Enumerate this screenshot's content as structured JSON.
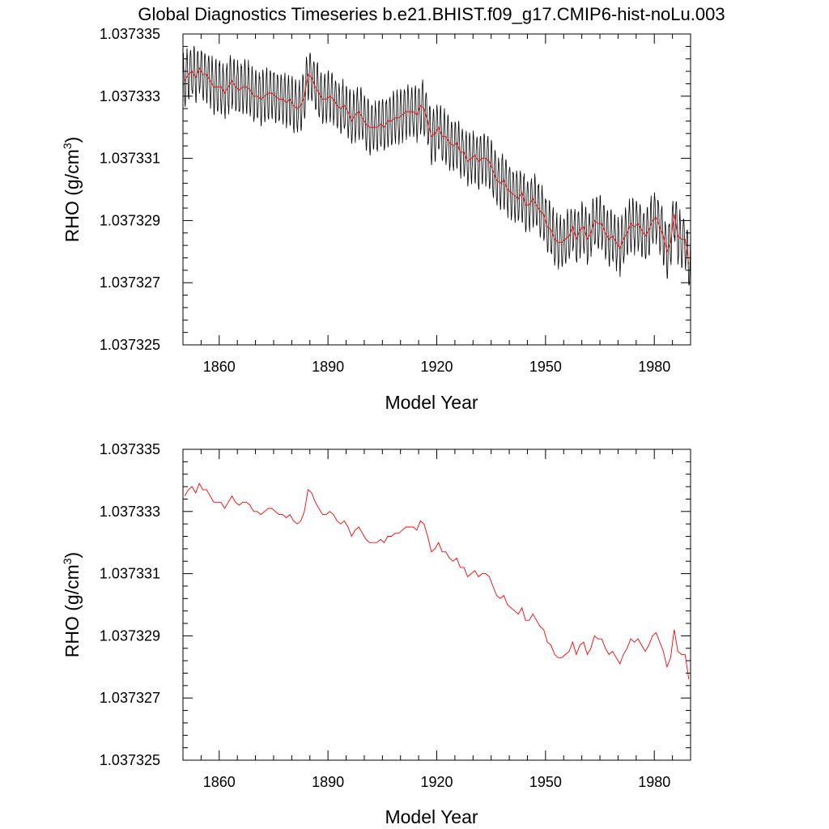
{
  "title": "Global Diagnostics Timeseries b.e21.BHIST.f09_g17.CMIP6-hist-noLu.003",
  "colors": {
    "monthly": "#000000",
    "annual": "#ff0000",
    "frame": "#000000",
    "background": "#ffffff"
  },
  "chart_data": [
    {
      "type": "line",
      "panel": "top",
      "xlabel": "Model Year",
      "ylabel": "RHO (g/cm",
      "ylabel_sup": "3",
      "ylabel_close": ")",
      "xlim": [
        1850,
        1990
      ],
      "ylim": [
        1.037325,
        1.037335
      ],
      "xticks": [
        1860,
        1890,
        1920,
        1950,
        1980
      ],
      "xtick_labels": [
        "1860",
        "1890",
        "1920",
        "1950",
        "1980"
      ],
      "yticks": [
        1.037325,
        1.037327,
        1.037329,
        1.037331,
        1.037333,
        1.037335
      ],
      "ytick_labels": [
        "1.037325",
        "1.037327",
        "1.037329",
        "1.037331",
        "1.037333",
        "1.037335"
      ],
      "grid": false,
      "legend": "none",
      "series": [
        {
          "role": "monthly",
          "color": "#000000",
          "seasonal_amplitude": 8e-07,
          "mean_source": "annual"
        },
        {
          "role": "annual",
          "color": "#ff0000",
          "x": [],
          "y": []
        }
      ]
    },
    {
      "type": "line",
      "panel": "bottom",
      "xlabel": "Model Year",
      "ylabel": "RHO (g/cm",
      "ylabel_sup": "3",
      "ylabel_close": ")",
      "xlim": [
        1850,
        1990
      ],
      "ylim": [
        1.037325,
        1.037335
      ],
      "xticks": [
        1860,
        1890,
        1920,
        1950,
        1980
      ],
      "xtick_labels": [
        "1860",
        "1890",
        "1920",
        "1950",
        "1980"
      ],
      "yticks": [
        1.037325,
        1.037327,
        1.037329,
        1.037331,
        1.037333,
        1.037335
      ],
      "ytick_labels": [
        "1.037325",
        "1.037327",
        "1.037329",
        "1.037331",
        "1.037333",
        "1.037335"
      ],
      "grid": false,
      "legend": "none",
      "series": [
        {
          "role": "annual",
          "color": "#ff0000",
          "x": [],
          "y": []
        }
      ]
    }
  ],
  "annual_anchors": {
    "x": [
      1850,
      1851,
      1852,
      1853,
      1854,
      1855,
      1856,
      1857,
      1858,
      1859,
      1860,
      1861,
      1862,
      1863,
      1864,
      1865,
      1866,
      1867,
      1868,
      1869,
      1870,
      1871,
      1872,
      1873,
      1874,
      1875,
      1876,
      1877,
      1878,
      1879,
      1880,
      1881,
      1882,
      1883,
      1884,
      1885,
      1886,
      1887,
      1888,
      1889,
      1890,
      1891,
      1892,
      1893,
      1894,
      1895,
      1896,
      1897,
      1898,
      1899,
      1900,
      1901,
      1902,
      1903,
      1904,
      1905,
      1906,
      1907,
      1908,
      1909,
      1910,
      1911,
      1912,
      1913,
      1914,
      1915,
      1916,
      1917,
      1918,
      1919,
      1920,
      1921,
      1922,
      1923,
      1924,
      1925,
      1926,
      1927,
      1928,
      1929,
      1930,
      1931,
      1932,
      1933,
      1934,
      1935,
      1936,
      1937,
      1938,
      1939,
      1940,
      1941,
      1942,
      1943,
      1944,
      1945,
      1946,
      1947,
      1948,
      1949,
      1950,
      1951,
      1952,
      1953,
      1954,
      1955,
      1956,
      1957,
      1958,
      1959,
      1960,
      1961,
      1962,
      1963,
      1964,
      1965,
      1966,
      1967,
      1968,
      1969,
      1970,
      1971,
      1972,
      1973,
      1974,
      1975,
      1976,
      1977,
      1978,
      1979,
      1980,
      1981,
      1982,
      1983,
      1984,
      1985,
      1986,
      1987,
      1988,
      1989
    ],
    "y": [
      1.0373335,
      1.0373337,
      1.0373338,
      1.0373336,
      1.0373339,
      1.0373337,
      1.0373337,
      1.0373335,
      1.0373333,
      1.0373333,
      1.0373333,
      1.0373331,
      1.0373333,
      1.0373335,
      1.0373333,
      1.0373332,
      1.0373333,
      1.0373333,
      1.0373332,
      1.037333,
      1.037333,
      1.0373329,
      1.037333,
      1.0373331,
      1.0373331,
      1.037333,
      1.0373329,
      1.0373329,
      1.0373328,
      1.0373329,
      1.0373327,
      1.0373326,
      1.0373327,
      1.037333,
      1.0373337,
      1.0373336,
      1.0373333,
      1.0373331,
      1.0373329,
      1.0373329,
      1.037333,
      1.0373329,
      1.0373327,
      1.0373326,
      1.0373327,
      1.0373325,
      1.0373322,
      1.0373324,
      1.0373325,
      1.0373323,
      1.0373321,
      1.037332,
      1.037332,
      1.037332,
      1.0373321,
      1.037332,
      1.0373322,
      1.0373322,
      1.0373323,
      1.0373323,
      1.0373324,
      1.0373325,
      1.0373325,
      1.0373325,
      1.0373324,
      1.0373327,
      1.0373326,
      1.0373322,
      1.0373317,
      1.0373318,
      1.037332,
      1.0373317,
      1.0373317,
      1.0373315,
      1.0373314,
      1.0373315,
      1.0373312,
      1.0373312,
      1.0373309,
      1.037331,
      1.0373311,
      1.0373309,
      1.037331,
      1.037331,
      1.0373309,
      1.0373306,
      1.0373303,
      1.0373302,
      1.0373303,
      1.03733,
      1.0373299,
      1.0373298,
      1.0373297,
      1.0373299,
      1.0373295,
      1.0373295,
      1.0373297,
      1.0373295,
      1.0373293,
      1.0373292,
      1.0373288,
      1.0373287,
      1.0373284,
      1.0373283,
      1.0373283,
      1.0373284,
      1.0373285,
      1.0373288,
      1.0373284,
      1.0373287,
      1.0373288,
      1.0373284,
      1.0373286,
      1.037329,
      1.0373289,
      1.0373289,
      1.0373286,
      1.0373284,
      1.0373285,
      1.0373283,
      1.0373281,
      1.0373284,
      1.0373286,
      1.0373289,
      1.0373288,
      1.0373289,
      1.0373287,
      1.0373285,
      1.0373287,
      1.037329,
      1.0373291,
      1.0373288,
      1.0373285,
      1.037328,
      1.0373283,
      1.0373292,
      1.0373285,
      1.0373284,
      1.0373284,
      1.0373276
    ]
  }
}
